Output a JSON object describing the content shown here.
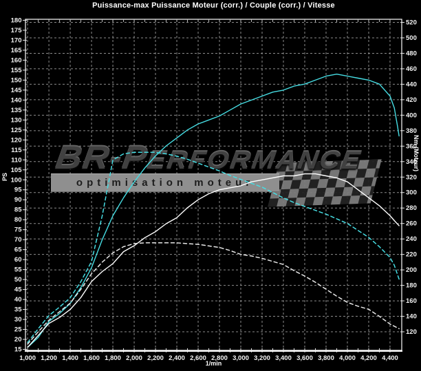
{
  "watermark": {
    "brand_prefix": "BR-P",
    "brand_rest": "erformance",
    "tagline": "optimisation moteur"
  },
  "chart_data": {
    "type": "line",
    "title": "Puissance-max Puissance Moteur (corr.) / Couple (corr.) / Vitesse",
    "xlabel": "1/min",
    "ylabel_left": "PS",
    "ylabel_right": "Nm (Moteur)",
    "background": "#000000",
    "grid_color": "#8d8d8d",
    "grid": "dashed",
    "legend_position": "none",
    "x_axis": {
      "min": 980,
      "max": 4510,
      "minor_step": 100,
      "major_ticks": [
        1000,
        1200,
        1400,
        1600,
        1800,
        2000,
        2200,
        2400,
        2600,
        2800,
        3000,
        3200,
        3400,
        3600,
        3800,
        4000,
        4200,
        4400
      ],
      "tick_labels": [
        "1,000",
        "1,200",
        "1,400",
        "1,600",
        "1,800",
        "2,000",
        "2,200",
        "2,400",
        "2,600",
        "2,800",
        "3,000",
        "3,200",
        "3,400",
        "3,600",
        "3,800",
        "4,000",
        "4,200",
        "4,400"
      ]
    },
    "y_left": {
      "unit": "PS",
      "min": 14.5,
      "max": 180.5,
      "ticks": [
        15,
        20,
        25,
        30,
        35,
        40,
        45,
        50,
        55,
        60,
        65,
        70,
        75,
        80,
        85,
        90,
        95,
        100,
        105,
        110,
        115,
        120,
        125,
        130,
        135,
        140,
        145,
        150,
        155,
        160,
        165,
        170,
        175,
        180
      ]
    },
    "y_right": {
      "unit": "Nm",
      "min": 96,
      "max": 524,
      "ticks": [
        120,
        140,
        160,
        180,
        200,
        220,
        240,
        260,
        280,
        300,
        320,
        340,
        360,
        380,
        400,
        420,
        440,
        460,
        480,
        500,
        520
      ]
    },
    "series": [
      {
        "id": "power-tuned-cyan-solid",
        "axis": "left",
        "unit": "PS",
        "color": "#46dde3",
        "style": "solid",
        "points": [
          [
            1000,
            16
          ],
          [
            1100,
            21
          ],
          [
            1200,
            29
          ],
          [
            1300,
            33
          ],
          [
            1400,
            38
          ],
          [
            1500,
            46
          ],
          [
            1600,
            56
          ],
          [
            1700,
            70
          ],
          [
            1800,
            82
          ],
          [
            1900,
            91
          ],
          [
            2000,
            99
          ],
          [
            2100,
            106
          ],
          [
            2200,
            112
          ],
          [
            2300,
            117
          ],
          [
            2400,
            121
          ],
          [
            2500,
            125
          ],
          [
            2600,
            128
          ],
          [
            2700,
            130
          ],
          [
            2800,
            132
          ],
          [
            2900,
            135
          ],
          [
            3000,
            138
          ],
          [
            3100,
            140
          ],
          [
            3200,
            142
          ],
          [
            3300,
            144
          ],
          [
            3400,
            145
          ],
          [
            3500,
            147
          ],
          [
            3600,
            148
          ],
          [
            3700,
            150
          ],
          [
            3800,
            152
          ],
          [
            3900,
            153
          ],
          [
            4000,
            152
          ],
          [
            4100,
            151
          ],
          [
            4200,
            150
          ],
          [
            4300,
            148
          ],
          [
            4400,
            142
          ],
          [
            4440,
            136
          ],
          [
            4470,
            127
          ],
          [
            4485,
            122
          ]
        ]
      },
      {
        "id": "power-stock-white-solid",
        "axis": "left",
        "unit": "PS",
        "color": "#ffffff",
        "style": "solid",
        "points": [
          [
            1000,
            16
          ],
          [
            1100,
            22
          ],
          [
            1200,
            28
          ],
          [
            1300,
            31
          ],
          [
            1400,
            35
          ],
          [
            1500,
            41
          ],
          [
            1600,
            49
          ],
          [
            1700,
            54
          ],
          [
            1800,
            58
          ],
          [
            1900,
            64
          ],
          [
            2000,
            67
          ],
          [
            2100,
            71
          ],
          [
            2200,
            74
          ],
          [
            2300,
            78
          ],
          [
            2400,
            81
          ],
          [
            2500,
            86
          ],
          [
            2600,
            90
          ],
          [
            2700,
            93
          ],
          [
            2800,
            95
          ],
          [
            2900,
            96
          ],
          [
            3000,
            97
          ],
          [
            3100,
            99
          ],
          [
            3200,
            100
          ],
          [
            3300,
            101
          ],
          [
            3400,
            102
          ],
          [
            3500,
            102
          ],
          [
            3600,
            103
          ],
          [
            3700,
            103
          ],
          [
            3800,
            102
          ],
          [
            3900,
            101
          ],
          [
            4000,
            99
          ],
          [
            4100,
            95
          ],
          [
            4200,
            91
          ],
          [
            4300,
            87
          ],
          [
            4400,
            82
          ],
          [
            4450,
            79
          ],
          [
            4485,
            77
          ]
        ]
      },
      {
        "id": "torque-tuned-cyan-dashed",
        "axis": "right",
        "unit": "Nm",
        "color": "#46dde3",
        "style": "dashed",
        "points": [
          [
            1000,
            106
          ],
          [
            1100,
            124
          ],
          [
            1200,
            141
          ],
          [
            1300,
            152
          ],
          [
            1400,
            164
          ],
          [
            1500,
            185
          ],
          [
            1600,
            211
          ],
          [
            1700,
            270
          ],
          [
            1800,
            342
          ],
          [
            1900,
            350
          ],
          [
            2000,
            352
          ],
          [
            2100,
            352
          ],
          [
            2200,
            352
          ],
          [
            2300,
            350
          ],
          [
            2400,
            347
          ],
          [
            2500,
            343
          ],
          [
            2600,
            338
          ],
          [
            2700,
            333
          ],
          [
            2800,
            328
          ],
          [
            2900,
            322
          ],
          [
            3000,
            317
          ],
          [
            3100,
            312
          ],
          [
            3200,
            307
          ],
          [
            3300,
            300
          ],
          [
            3400,
            293
          ],
          [
            3500,
            287
          ],
          [
            3600,
            282
          ],
          [
            3700,
            277
          ],
          [
            3800,
            272
          ],
          [
            3900,
            266
          ],
          [
            4000,
            260
          ],
          [
            4100,
            251
          ],
          [
            4200,
            242
          ],
          [
            4300,
            230
          ],
          [
            4400,
            216
          ],
          [
            4440,
            206
          ],
          [
            4485,
            188
          ]
        ]
      },
      {
        "id": "torque-stock-white-dashed",
        "axis": "right",
        "unit": "Nm",
        "color": "#e8e8e8",
        "style": "dashed",
        "points": [
          [
            1000,
            104
          ],
          [
            1100,
            120
          ],
          [
            1200,
            135
          ],
          [
            1300,
            146
          ],
          [
            1400,
            157
          ],
          [
            1500,
            175
          ],
          [
            1600,
            195
          ],
          [
            1700,
            210
          ],
          [
            1800,
            222
          ],
          [
            1900,
            230
          ],
          [
            2000,
            234
          ],
          [
            2100,
            235
          ],
          [
            2200,
            235
          ],
          [
            2300,
            235
          ],
          [
            2400,
            235
          ],
          [
            2500,
            234
          ],
          [
            2600,
            233
          ],
          [
            2700,
            231
          ],
          [
            2800,
            229
          ],
          [
            2900,
            225
          ],
          [
            3000,
            220
          ],
          [
            3100,
            218
          ],
          [
            3200,
            215
          ],
          [
            3300,
            211
          ],
          [
            3400,
            207
          ],
          [
            3500,
            199
          ],
          [
            3600,
            192
          ],
          [
            3700,
            184
          ],
          [
            3800,
            175
          ],
          [
            3900,
            166
          ],
          [
            4000,
            158
          ],
          [
            4100,
            153
          ],
          [
            4200,
            149
          ],
          [
            4300,
            140
          ],
          [
            4400,
            130
          ],
          [
            4485,
            124
          ]
        ]
      }
    ]
  }
}
